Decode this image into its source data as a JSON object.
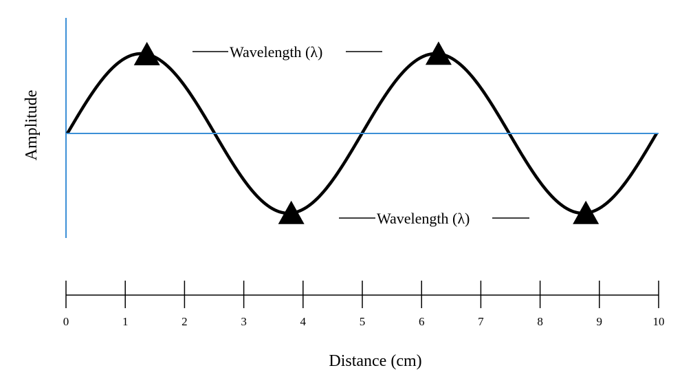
{
  "diagram": {
    "type": "wave-diagram",
    "axis_color": "#3b8fd6",
    "wave_color": "#000000",
    "marker_color": "#000000",
    "y_axis_label": "Amplitude",
    "x_axis_label": "Distance (cm)",
    "wavelength_label_1": "Wavelength (λ)",
    "wavelength_label_2": "Wavelength (λ)"
  },
  "chart_data": {
    "type": "line",
    "title": "",
    "xlabel": "Distance (cm)",
    "ylabel": "Amplitude",
    "xlim": [
      0,
      10
    ],
    "x_ticks": [
      "0",
      "1",
      "2",
      "3",
      "4",
      "5",
      "6",
      "7",
      "8",
      "9",
      "10"
    ],
    "wave": {
      "function": "sine",
      "cycles": 2,
      "x_start": 0,
      "x_end": 10,
      "amplitude": 1
    },
    "markers": [
      {
        "kind": "crest",
        "x": 1.35
      },
      {
        "kind": "trough",
        "x": 3.8
      },
      {
        "kind": "crest",
        "x": 6.3
      },
      {
        "kind": "trough",
        "x": 8.8
      }
    ]
  }
}
